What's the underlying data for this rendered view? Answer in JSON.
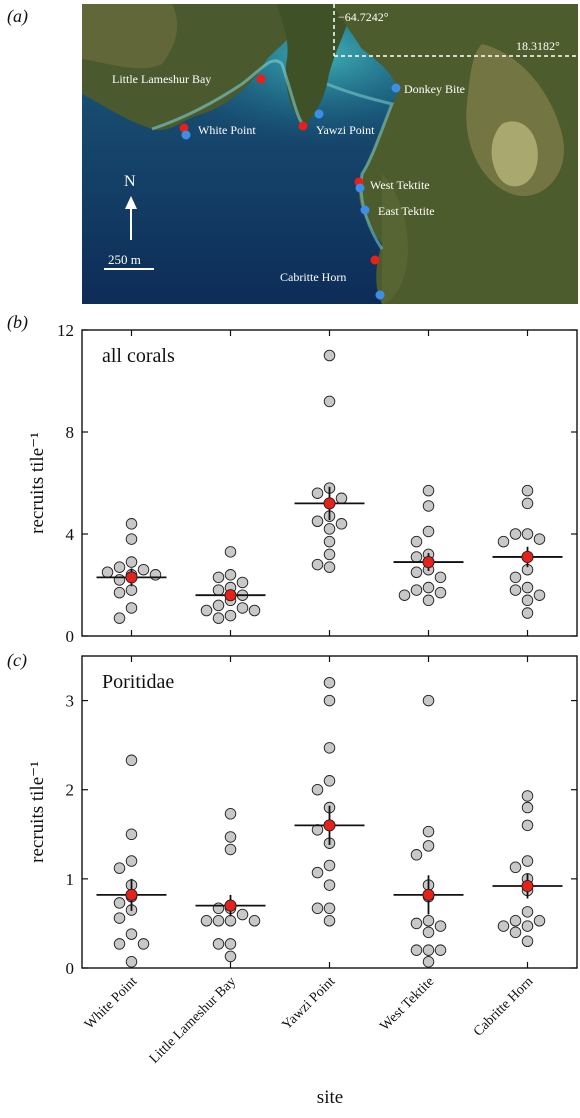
{
  "panels": {
    "a": "(a)",
    "b": "(b)",
    "c": "(c)"
  },
  "map": {
    "coord_lon": "−64.7242°",
    "coord_lat": "18.3182°",
    "north": "N",
    "scale": "250 m",
    "sites": [
      {
        "name": "Little Lameshur Bay",
        "color": "#e8201a"
      },
      {
        "name": "White Point",
        "color": "#3d8fe6"
      },
      {
        "name": "Yawzi Point",
        "color": "#e8201a"
      },
      {
        "name": "Donkey Bite",
        "color": "#3d8fe6"
      },
      {
        "name": "West Tektite",
        "color": "#e8201a"
      },
      {
        "name": "East Tektite",
        "color": "#3d8fe6"
      },
      {
        "name": "Cabritte Horn",
        "color": "#e8201a"
      }
    ],
    "colors": {
      "red": "#e8201a",
      "blue": "#3d8fe6"
    }
  },
  "chart_data": [
    {
      "type": "scatter",
      "panel_label": "all corals",
      "ylabel": "recruits tile⁻¹",
      "ylim": [
        0,
        12
      ],
      "yticks": [
        0,
        4,
        8,
        12
      ],
      "categories": [
        "White Point",
        "Little Lameshur Bay",
        "Yawzi Point",
        "West Tektite",
        "Cabritte Horn"
      ],
      "points": [
        [
          4.4,
          3.8,
          2.9,
          2.7,
          2.6,
          2.5,
          2.4,
          2.4,
          2.2,
          1.8,
          1.7,
          1.1,
          0.7
        ],
        [
          3.3,
          2.4,
          2.3,
          2.1,
          1.9,
          1.8,
          1.6,
          1.4,
          1.2,
          1.1,
          1.0,
          1.0,
          0.8,
          0.7
        ],
        [
          11.0,
          9.2,
          5.8,
          5.6,
          5.4,
          5.2,
          4.7,
          4.5,
          4.4,
          4.2,
          3.7,
          3.2,
          2.8,
          2.7
        ],
        [
          5.7,
          5.1,
          4.1,
          3.7,
          3.2,
          3.1,
          2.6,
          2.5,
          2.3,
          1.9,
          1.8,
          1.7,
          1.6,
          1.4
        ],
        [
          5.7,
          5.2,
          4.0,
          4.0,
          3.8,
          3.7,
          3.1,
          2.6,
          2.3,
          1.9,
          1.8,
          1.6,
          1.4,
          0.9
        ]
      ],
      "means": [
        2.3,
        1.6,
        5.2,
        2.9,
        3.1
      ],
      "errors": [
        0.35,
        0.2,
        0.65,
        0.35,
        0.4
      ],
      "colors": {
        "point_fill": "#c8c8c8",
        "mean": "#e8201a"
      }
    },
    {
      "type": "scatter",
      "panel_label": "Poritidae",
      "ylabel": "recruits tile⁻¹",
      "ylim": [
        0,
        3.5
      ],
      "yticks": [
        0,
        1,
        2,
        3
      ],
      "categories": [
        "White Point",
        "Little Lameshur Bay",
        "Yawzi Point",
        "West Tektite",
        "Cabritte Horn"
      ],
      "points": [
        [
          2.33,
          1.5,
          1.2,
          1.12,
          0.93,
          0.8,
          0.73,
          0.65,
          0.56,
          0.38,
          0.27,
          0.27,
          0.07
        ],
        [
          1.73,
          1.47,
          1.33,
          0.67,
          0.67,
          0.6,
          0.53,
          0.53,
          0.53,
          0.53,
          0.27,
          0.27,
          0.13
        ],
        [
          3.2,
          3.0,
          2.47,
          2.1,
          2.0,
          1.8,
          1.6,
          1.55,
          1.4,
          1.15,
          1.07,
          0.93,
          0.67,
          0.67,
          0.53
        ],
        [
          3.0,
          1.53,
          1.37,
          1.27,
          0.93,
          0.8,
          0.53,
          0.5,
          0.47,
          0.4,
          0.2,
          0.2,
          0.2,
          0.07
        ],
        [
          1.93,
          1.8,
          1.6,
          1.2,
          1.13,
          1.0,
          0.87,
          0.63,
          0.53,
          0.53,
          0.47,
          0.47,
          0.4,
          0.3
        ]
      ],
      "means": [
        0.82,
        0.7,
        1.6,
        0.82,
        0.92
      ],
      "errors": [
        0.18,
        0.12,
        0.22,
        0.22,
        0.14
      ],
      "colors": {
        "point_fill": "#c8c8c8",
        "mean": "#e8201a"
      }
    }
  ],
  "xlabel": "site"
}
